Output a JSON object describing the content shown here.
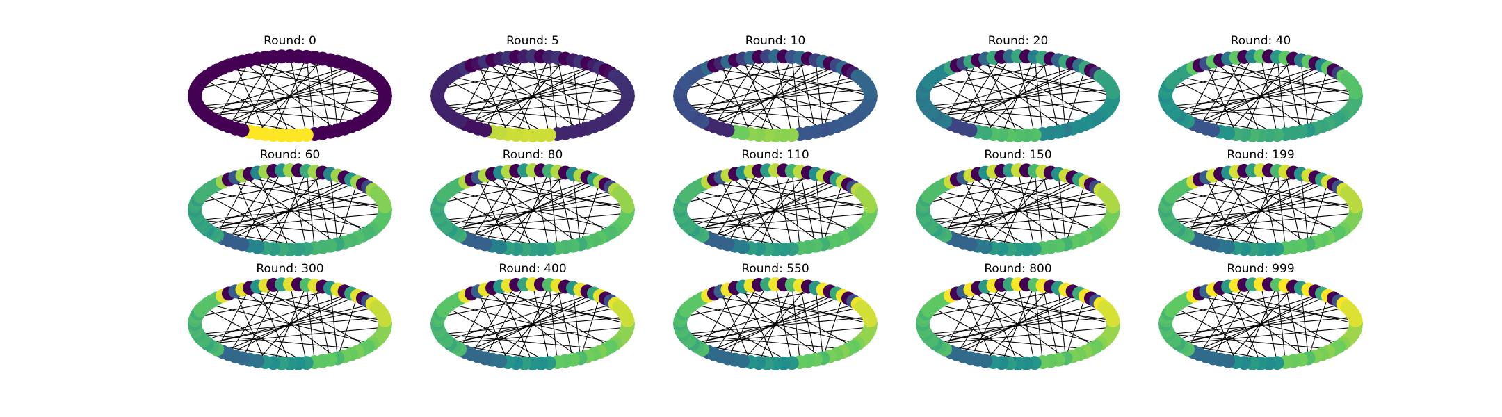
{
  "figure": {
    "title_prefix": "Round: ",
    "rounds": [
      "0",
      "5",
      "10",
      "20",
      "40",
      "60",
      "80",
      "110",
      "150",
      "199",
      "300",
      "400",
      "550",
      "800",
      "999"
    ],
    "node_count": 72,
    "layout": "circular",
    "edge_color": "#000000",
    "colormap": "viridis",
    "colormap_stops": [
      "#440154",
      "#3b528b",
      "#21918c",
      "#5ec962",
      "#fde725"
    ],
    "grid": "3x5"
  }
}
